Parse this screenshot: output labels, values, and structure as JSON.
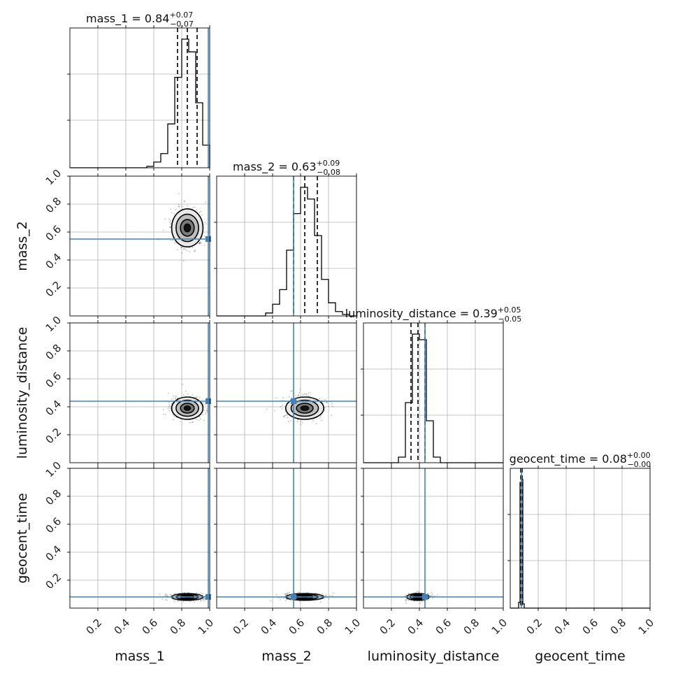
{
  "chart_data": {
    "type": "corner",
    "parameters": [
      "mass_1",
      "mass_2",
      "luminosity_distance",
      "geocent_time"
    ],
    "range": [
      0,
      1
    ],
    "tick_labels": [
      "0.2",
      "0.4",
      "0.6",
      "0.8",
      "1.0"
    ],
    "tick_values": [
      0.2,
      0.4,
      0.6,
      0.8,
      1.0
    ],
    "grid": true,
    "truth_color": "#4682b4",
    "contour_color": "#000000",
    "truths": {
      "mass_1": 0.99,
      "mass_2": 0.55,
      "luminosity_distance": 0.44,
      "geocent_time": 0.08
    },
    "titles": [
      {
        "param": "mass_1",
        "prefix": "mass_1 = 0.84",
        "plus": "+0.07",
        "minus": "−0.07"
      },
      {
        "param": "mass_2",
        "prefix": "mass_2 = 0.63",
        "plus": "+0.09",
        "minus": "−0.08"
      },
      {
        "param": "luminosity_distance",
        "prefix": "luminosity_distance = 0.39",
        "plus": "+0.05",
        "minus": "−0.05"
      },
      {
        "param": "geocent_time",
        "prefix": "geocent_time = 0.08",
        "plus": "+0.00",
        "minus": "−0.00"
      }
    ],
    "quantiles": {
      "mass_1": [
        0.77,
        0.84,
        0.91
      ],
      "mass_2": [
        0.55,
        0.63,
        0.72
      ],
      "luminosity_distance": [
        0.34,
        0.39,
        0.44
      ],
      "geocent_time": [
        0.075,
        0.08,
        0.085
      ]
    },
    "histograms": {
      "mass_1": {
        "edges": [
          0.55,
          0.6,
          0.65,
          0.7,
          0.75,
          0.8,
          0.85,
          0.9,
          0.95,
          1.0
        ],
        "counts": [
          1,
          4,
          10,
          31,
          64,
          91,
          82,
          46,
          16
        ]
      },
      "mass_2": {
        "edges": [
          0.35,
          0.4,
          0.45,
          0.5,
          0.55,
          0.6,
          0.65,
          0.7,
          0.75,
          0.8,
          0.85,
          0.9,
          0.95
        ],
        "counts": [
          2,
          8,
          18,
          45,
          70,
          88,
          80,
          55,
          25,
          9,
          3,
          1
        ]
      },
      "luminosity_distance": {
        "edges": [
          0.25,
          0.3,
          0.35,
          0.4,
          0.45,
          0.5,
          0.55
        ],
        "counts": [
          4,
          43,
          92,
          88,
          30,
          4
        ]
      },
      "geocent_time": {
        "edges": [
          0.06,
          0.07,
          0.08,
          0.09,
          0.1
        ],
        "counts": [
          4,
          88,
          90,
          3
        ]
      }
    },
    "posterior_centers": {
      "mass_1": 0.84,
      "mass_2": 0.63,
      "luminosity_distance": 0.39,
      "geocent_time": 0.08
    },
    "posterior_widths": {
      "mass_1": 0.07,
      "mass_2": 0.085,
      "luminosity_distance": 0.05,
      "geocent_time": 0.005
    }
  }
}
